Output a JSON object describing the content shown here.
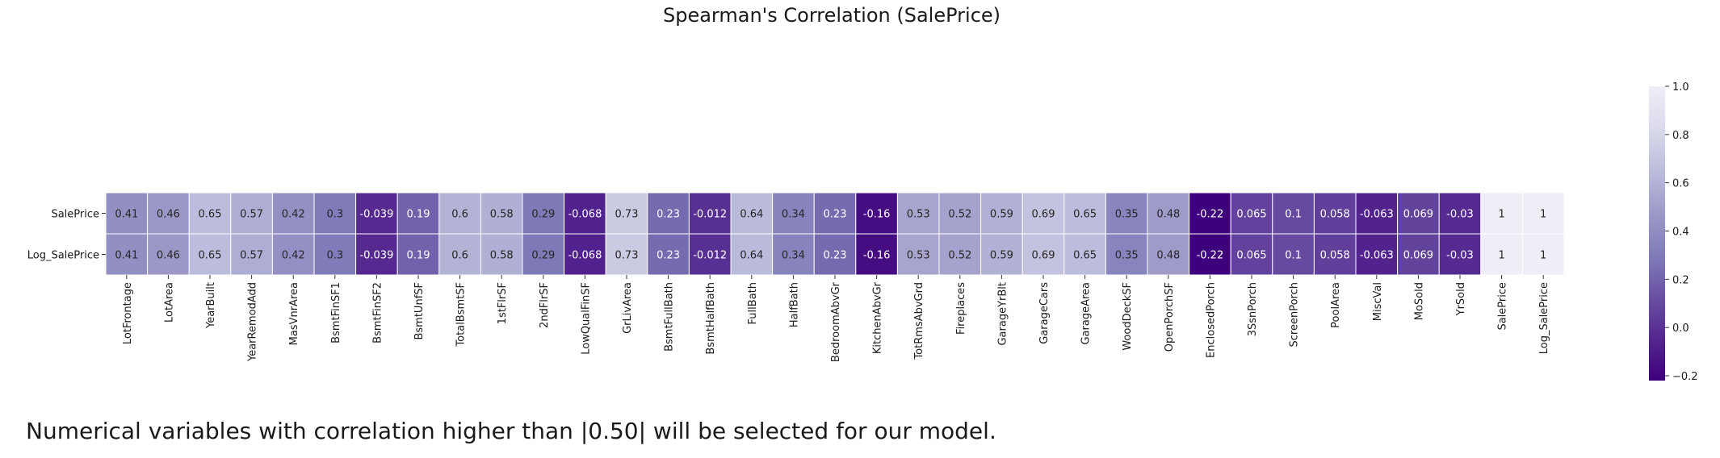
{
  "caption": "Numerical variables with correlation higher than |0.50| will be selected for our model.",
  "chart_data": {
    "type": "heatmap",
    "title": "Spearman's Correlation (SalePrice)",
    "rows": [
      "SalePrice",
      "Log_SalePrice"
    ],
    "columns": [
      "LotFrontage",
      "LotArea",
      "YearBuilt",
      "YearRemodAdd",
      "MasVnrArea",
      "BsmtFinSF1",
      "BsmtFinSF2",
      "BsmtUnfSF",
      "TotalBsmtSF",
      "1stFlrSF",
      "2ndFlrSF",
      "LowQualFinSF",
      "GrLivArea",
      "BsmtFullBath",
      "BsmtHalfBath",
      "FullBath",
      "HalfBath",
      "BedroomAbvGr",
      "KitchenAbvGr",
      "TotRmsAbvGrd",
      "Fireplaces",
      "GarageYrBlt",
      "GarageCars",
      "GarageArea",
      "WoodDeckSF",
      "OpenPorchSF",
      "EnclosedPorch",
      "3SsnPorch",
      "ScreenPorch",
      "PoolArea",
      "MiscVal",
      "MoSold",
      "YrSold",
      "SalePrice",
      "Log_SalePrice"
    ],
    "values": [
      [
        0.41,
        0.46,
        0.65,
        0.57,
        0.42,
        0.3,
        -0.039,
        0.19,
        0.6,
        0.58,
        0.29,
        -0.068,
        0.73,
        0.23,
        -0.012,
        0.64,
        0.34,
        0.23,
        -0.16,
        0.53,
        0.52,
        0.59,
        0.69,
        0.65,
        0.35,
        0.48,
        -0.22,
        0.065,
        0.1,
        0.058,
        -0.063,
        0.069,
        -0.03,
        1,
        1
      ],
      [
        0.41,
        0.46,
        0.65,
        0.57,
        0.42,
        0.3,
        -0.039,
        0.19,
        0.6,
        0.58,
        0.29,
        -0.068,
        0.73,
        0.23,
        -0.012,
        0.64,
        0.34,
        0.23,
        -0.16,
        0.53,
        0.52,
        0.59,
        0.69,
        0.65,
        0.35,
        0.48,
        -0.22,
        0.065,
        0.1,
        0.058,
        -0.063,
        0.069,
        -0.03,
        1,
        1
      ]
    ],
    "labels": [
      [
        "0.41",
        "0.46",
        "0.65",
        "0.57",
        "0.42",
        "0.3",
        "-0.039",
        "0.19",
        "0.6",
        "0.58",
        "0.29",
        "-0.068",
        "0.73",
        "0.23",
        "-0.012",
        "0.64",
        "0.34",
        "0.23",
        "-0.16",
        "0.53",
        "0.52",
        "0.59",
        "0.69",
        "0.65",
        "0.35",
        "0.48",
        "-0.22",
        "0.065",
        "0.1",
        "0.058",
        "-0.063",
        "0.069",
        "-0.03",
        "1",
        "1"
      ],
      [
        "0.41",
        "0.46",
        "0.65",
        "0.57",
        "0.42",
        "0.3",
        "-0.039",
        "0.19",
        "0.6",
        "0.58",
        "0.29",
        "-0.068",
        "0.73",
        "0.23",
        "-0.012",
        "0.64",
        "0.34",
        "0.23",
        "-0.16",
        "0.53",
        "0.52",
        "0.59",
        "0.69",
        "0.65",
        "0.35",
        "0.48",
        "-0.22",
        "0.065",
        "0.1",
        "0.058",
        "-0.063",
        "0.069",
        "-0.03",
        "1",
        "1"
      ]
    ],
    "colorbar": {
      "min": -0.22,
      "max": 1.0,
      "ticks": [
        -0.2,
        0.0,
        0.2,
        0.4,
        0.6,
        0.8,
        1.0
      ],
      "tick_labels": [
        "−0.2",
        "0.0",
        "0.2",
        "0.4",
        "0.6",
        "0.8",
        "1.0"
      ]
    },
    "colormap": "Purples_r",
    "colormap_stops": [
      "#3f007d",
      "#54278f",
      "#6a51a3",
      "#807dba",
      "#9e9ac8",
      "#bcbddc",
      "#dadaeb",
      "#efedf5"
    ],
    "cell_border_color": "#ffffff",
    "grid": false
  }
}
